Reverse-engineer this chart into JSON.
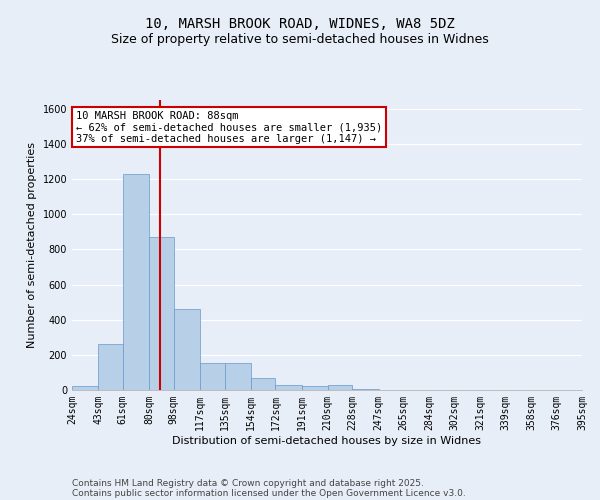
{
  "title": "10, MARSH BROOK ROAD, WIDNES, WA8 5DZ",
  "subtitle": "Size of property relative to semi-detached houses in Widnes",
  "xlabel": "Distribution of semi-detached houses by size in Widnes",
  "ylabel": "Number of semi-detached properties",
  "bar_values": [
    25,
    260,
    1230,
    870,
    460,
    155,
    155,
    70,
    30,
    25,
    30,
    5,
    2,
    1,
    1,
    0,
    0,
    0,
    0,
    0
  ],
  "bin_edges": [
    24,
    43,
    61,
    80,
    98,
    117,
    135,
    154,
    172,
    191,
    210,
    228,
    247,
    265,
    284,
    302,
    321,
    339,
    358,
    376,
    395
  ],
  "bar_color": "#b8cfe8",
  "bar_edge_color": "#6699cc",
  "property_size": 88,
  "vline_color": "#cc0000",
  "ylim": [
    0,
    1650
  ],
  "yticks": [
    0,
    200,
    400,
    600,
    800,
    1000,
    1200,
    1400,
    1600
  ],
  "annotation_text": "10 MARSH BROOK ROAD: 88sqm\n← 62% of semi-detached houses are smaller (1,935)\n37% of semi-detached houses are larger (1,147) →",
  "annotation_box_color": "#ffffff",
  "annotation_border_color": "#cc0000",
  "footer_line1": "Contains HM Land Registry data © Crown copyright and database right 2025.",
  "footer_line2": "Contains public sector information licensed under the Open Government Licence v3.0.",
  "background_color": "#e8eef8",
  "grid_color": "#ffffff",
  "title_fontsize": 10,
  "subtitle_fontsize": 9,
  "axis_label_fontsize": 8,
  "tick_fontsize": 7,
  "annotation_fontsize": 7.5,
  "footer_fontsize": 6.5
}
